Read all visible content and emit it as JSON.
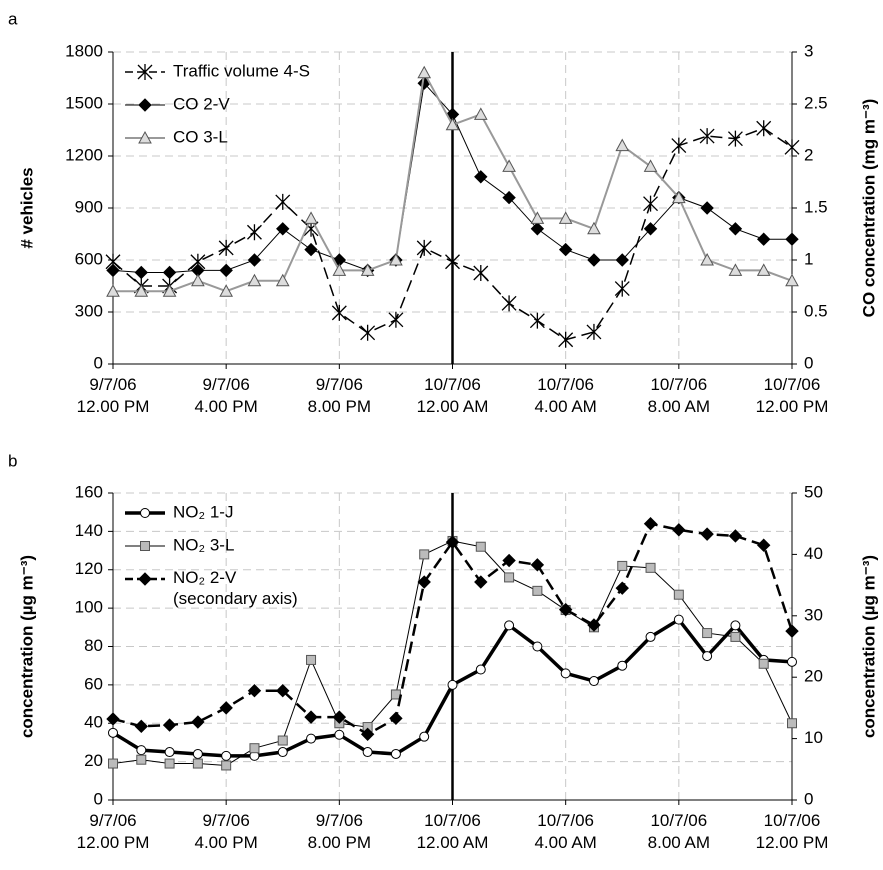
{
  "chart_data": [
    {
      "type": "line",
      "label": "a",
      "categories": [
        "9/7/06 12.00 PM",
        null,
        null,
        null,
        "9/7/06 4.00 PM",
        null,
        null,
        null,
        "9/7/06 8.00 PM",
        null,
        null,
        null,
        "10/7/06 12.00 AM",
        null,
        null,
        null,
        "10/7/06 4.00 AM",
        null,
        null,
        null,
        "10/7/06 8.00 AM",
        null,
        null,
        null,
        "10/7/06 12.00 PM"
      ],
      "ylabel": "# vehicles",
      "y2label": "CO concentration (mg m⁻³)",
      "ylim": [
        0,
        1800
      ],
      "yticks": [
        0,
        300,
        600,
        900,
        1200,
        1500,
        1800
      ],
      "y2lim": [
        0,
        3
      ],
      "y2ticks": [
        0,
        0.5,
        1,
        1.5,
        2,
        2.5,
        3
      ],
      "grid": true,
      "legend": "upper left",
      "series": [
        {
          "name": "Traffic volume 4-S",
          "color": "#000000",
          "marker": "star",
          "dash": true,
          "width": 1.5,
          "values": [
            590,
            450,
            450,
            590,
            670,
            760,
            935,
            780,
            295,
            180,
            255,
            670,
            590,
            525,
            350,
            250,
            140,
            185,
            435,
            925,
            1260,
            1315,
            1300,
            1360,
            1250
          ]
        },
        {
          "name": "CO 2-V",
          "color": "#000000",
          "marker": "diamond",
          "dash": false,
          "width": 1,
          "axis": "y2",
          "values": [
            0.9,
            0.88,
            0.88,
            0.9,
            0.9,
            1.0,
            1.3,
            1.1,
            1.0,
            0.9,
            1.0,
            2.7,
            2.4,
            1.8,
            1.6,
            1.3,
            1.1,
            1.0,
            1.0,
            1.3,
            1.6,
            1.5,
            1.3,
            1.2,
            1.2
          ]
        },
        {
          "name": "CO 3-L",
          "color": "#999999",
          "marker": "triangle",
          "dash": false,
          "width": 2,
          "axis": "y2",
          "values": [
            0.7,
            0.7,
            0.7,
            0.8,
            0.7,
            0.8,
            0.8,
            1.4,
            0.9,
            0.9,
            1.0,
            2.8,
            2.3,
            2.4,
            1.9,
            1.4,
            1.4,
            1.3,
            2.1,
            1.9,
            1.6,
            1.0,
            0.9,
            0.9,
            0.8
          ]
        }
      ]
    },
    {
      "type": "line",
      "label": "b",
      "categories": [
        "9/7/06 12.00 PM",
        null,
        null,
        null,
        "9/7/06 4.00 PM",
        null,
        null,
        null,
        "9/7/06 8.00 PM",
        null,
        null,
        null,
        "10/7/06 12.00 AM",
        null,
        null,
        null,
        "10/7/06 4.00 AM",
        null,
        null,
        null,
        "10/7/06 8.00 AM",
        null,
        null,
        null,
        "10/7/06 12.00 PM"
      ],
      "ylabel": "concentration (µg m⁻³)",
      "y2label": "concentration (µg m⁻³)",
      "ylim": [
        0,
        160
      ],
      "yticks": [
        0,
        20,
        40,
        60,
        80,
        100,
        120,
        140,
        160
      ],
      "y2lim": [
        0,
        50
      ],
      "y2ticks": [
        0,
        10,
        20,
        30,
        40,
        50
      ],
      "grid": true,
      "legend": "upper left",
      "series": [
        {
          "name": "NO₂ 1-J",
          "color": "#000000",
          "marker": "circle",
          "dash": false,
          "width": 3.5,
          "values": [
            35,
            26,
            25,
            24,
            23,
            23,
            25,
            32,
            34,
            25,
            24,
            33,
            60,
            68,
            91,
            80,
            66,
            62,
            70,
            85,
            94,
            75,
            91,
            73,
            72
          ]
        },
        {
          "name": "NO₂ 3-L",
          "color": "#000000",
          "marker": "square",
          "dash": false,
          "width": 1,
          "values": [
            19,
            21,
            19,
            19,
            18,
            27,
            31,
            73,
            40,
            38,
            55,
            128,
            135,
            132,
            116,
            109,
            99,
            90,
            122,
            121,
            107,
            87,
            85,
            71,
            40
          ]
        },
        {
          "name": "NO₂ 2-V (secondary axis)",
          "color": "#000000",
          "marker": "diamond",
          "dash": true,
          "width": 2.5,
          "axis": "y2",
          "values": [
            13.2,
            12,
            12.2,
            12.7,
            15,
            17.8,
            17.8,
            13.5,
            13.5,
            10.7,
            13.3,
            35.5,
            42,
            35.5,
            39,
            38.3,
            31,
            28.5,
            34.5,
            45,
            44,
            43.3,
            43,
            41.5,
            27.5
          ]
        }
      ]
    }
  ]
}
